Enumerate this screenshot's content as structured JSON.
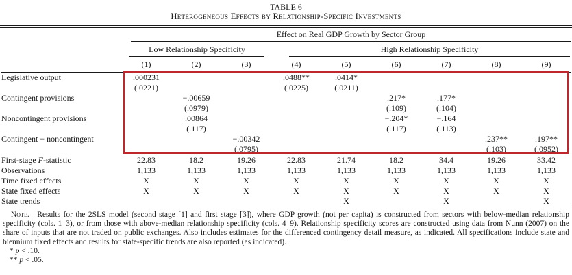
{
  "title": {
    "number": "TABLE 6",
    "caption": "Heterogeneous Effects by Relationship-Specific Investments"
  },
  "header": {
    "group_title": "Effect on Real GDP Growth by Sector Group",
    "subgroups": [
      {
        "label": "Low Relationship Specificity"
      },
      {
        "label": "High Relationship Specificity"
      }
    ],
    "column_numbers": [
      "(1)",
      "(2)",
      "(3)",
      "(4)",
      "(5)",
      "(6)",
      "(7)",
      "(8)",
      "(9)"
    ]
  },
  "table": {
    "coef_rows": [
      {
        "label": [
          {
            "t": "Legislative output"
          }
        ],
        "estimates": [
          ".000231",
          "",
          "",
          ".0488**",
          ".0414*",
          "",
          "",
          "",
          ""
        ],
        "ses": [
          "(.0221)",
          "",
          "",
          "(.0225)",
          "(.0211)",
          "",
          "",
          "",
          ""
        ]
      },
      {
        "label": [
          {
            "t": "Contingent provisions"
          }
        ],
        "estimates": [
          "",
          "−.00659",
          "",
          "",
          "",
          ".217*",
          ".177*",
          "",
          ""
        ],
        "ses": [
          "",
          "(.0979)",
          "",
          "",
          "",
          "(.109)",
          "(.104)",
          "",
          ""
        ]
      },
      {
        "label": [
          {
            "t": "Noncontingent provisions"
          }
        ],
        "estimates": [
          "",
          ".00864",
          "",
          "",
          "",
          "−.204*",
          "−.164",
          "",
          ""
        ],
        "ses": [
          "",
          "(.117)",
          "",
          "",
          "",
          "(.117)",
          "(.113)",
          "",
          ""
        ]
      },
      {
        "label": [
          {
            "t": "Contingent − noncontingent"
          }
        ],
        "estimates": [
          "",
          "",
          "−.00342",
          "",
          "",
          "",
          "",
          ".237**",
          ".197**"
        ],
        "ses": [
          "",
          "",
          "(.0795)",
          "",
          "",
          "",
          "",
          "(.103)",
          "(.0952)"
        ]
      }
    ],
    "stat_rows": [
      {
        "label": [
          {
            "t": "First-stage "
          },
          {
            "t": "F",
            "i": true
          },
          {
            "t": "-statistic"
          }
        ],
        "values": [
          "22.83",
          "18.2",
          "19.26",
          "22.83",
          "21.74",
          "18.2",
          "34.4",
          "19.26",
          "33.42"
        ]
      },
      {
        "label": [
          {
            "t": "Observations"
          }
        ],
        "values": [
          "1,133",
          "1,133",
          "1,133",
          "1,133",
          "1,133",
          "1,133",
          "1,133",
          "1,133",
          "1,133"
        ]
      },
      {
        "label": [
          {
            "t": "Time fixed effects"
          }
        ],
        "values": [
          "X",
          "X",
          "X",
          "X",
          "X",
          "X",
          "X",
          "X",
          "X"
        ]
      },
      {
        "label": [
          {
            "t": "State fixed effects"
          }
        ],
        "values": [
          "X",
          "X",
          "X",
          "X",
          "X",
          "X",
          "X",
          "X",
          "X"
        ]
      },
      {
        "label": [
          {
            "t": "State trends"
          }
        ],
        "values": [
          "",
          "",
          "",
          "",
          "X",
          "",
          "X",
          "",
          "X"
        ]
      }
    ]
  },
  "note": {
    "lead": "Note.",
    "body": "—Results for the 2SLS model (second stage [1] and first stage [3]), where GDP growth (not per capita) is constructed from sectors with below-median relationship specificity (cols. 1–3), or from those with above-median relationship specificity (cols. 4–9). Relationship specificity scores are constructed using data from Nunn (2007) on the share of inputs that are not traded on public exchanges. Also includes estimates for the differenced contingency detail measure, as indicated. All specifications include state and biennium fixed effects and results for state-specific trends are also reported (as indicated).",
    "significance": [
      {
        "parts": [
          {
            "t": "*  "
          },
          {
            "t": "p",
            "i": true
          },
          {
            "t": " < .10."
          }
        ]
      },
      {
        "parts": [
          {
            "t": "**  "
          },
          {
            "t": "p",
            "i": true
          },
          {
            "t": " < .05."
          }
        ]
      }
    ]
  },
  "annotation": {
    "color": "#c0272d"
  },
  "text_color": "#1a1a1a"
}
